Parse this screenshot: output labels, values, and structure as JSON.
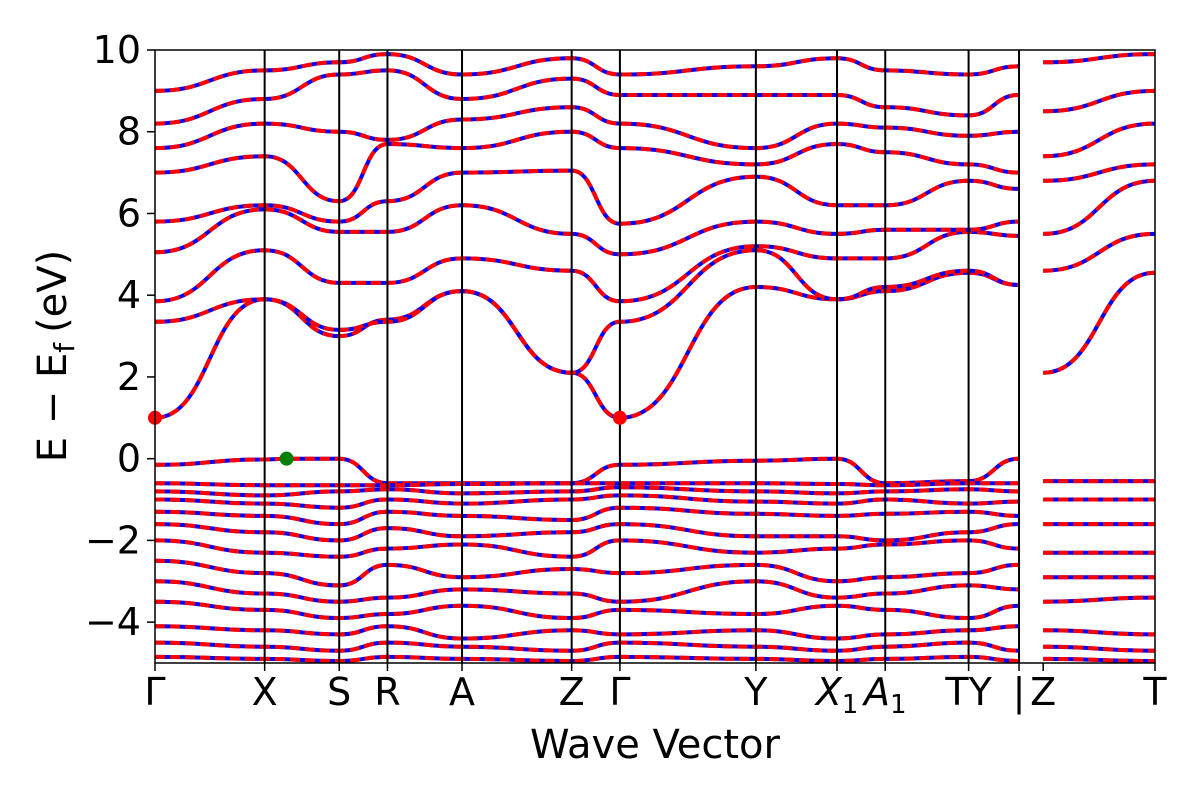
{
  "chart_data": {
    "type": "line",
    "xlabel": "Wave Vector",
    "ylabel_main": "E − E",
    "ylabel_sub": "f",
    "ylabel_unit": "(eV)",
    "ylim": [
      -5,
      10
    ],
    "yticks": [
      {
        "value": 10,
        "label": "10"
      },
      {
        "value": 8,
        "label": "8"
      },
      {
        "value": 6,
        "label": "6"
      },
      {
        "value": 4,
        "label": "4"
      },
      {
        "value": 2,
        "label": "2"
      },
      {
        "value": 0,
        "label": "0"
      },
      {
        "value": -2,
        "label": "−2"
      },
      {
        "value": -4,
        "label": "−4"
      }
    ],
    "kpath": [
      "Γ",
      "X",
      "S",
      "R",
      "A",
      "Z",
      "Γ",
      "Y",
      "X1",
      "A1",
      "T",
      "Y",
      "Z",
      "T"
    ],
    "xticks": [
      {
        "label": "Γ",
        "x": 0.0
      },
      {
        "label": "X",
        "x": 0.5
      },
      {
        "label": "S",
        "x": 0.84
      },
      {
        "label": "R",
        "x": 1.06
      },
      {
        "label": "A",
        "x": 1.4
      },
      {
        "label": "Z",
        "x": 1.9
      },
      {
        "label": "Γ",
        "x": 2.12
      },
      {
        "label": "Y",
        "x": 2.74
      },
      {
        "label": "X",
        "sub": "1",
        "x": 3.11
      },
      {
        "label": "A",
        "sub": "1",
        "x": 3.33
      },
      {
        "label": "TY",
        "x": 3.71
      },
      {
        "label": "|",
        "x": 3.94
      },
      {
        "label": "Z",
        "x": 4.05
      },
      {
        "label": "T",
        "x": 4.56
      }
    ],
    "xrange": [
      0.0,
      4.56
    ],
    "segment_boundaries": [
      0.5,
      0.84,
      1.06,
      1.4,
      1.9,
      2.12,
      2.74,
      3.11,
      3.33,
      3.71,
      3.94
    ],
    "series_colors": {
      "spin_up": "#0000ff",
      "spin_down": "#ff0000"
    },
    "cbm_points": [
      {
        "x": 0.0,
        "y": 1.0
      },
      {
        "x": 2.12,
        "y": 1.0
      }
    ],
    "cbm_color": "#ff0000",
    "vbm_points": [
      {
        "x": 0.6,
        "y": 0.0
      }
    ],
    "vbm_color": "#008000",
    "bands": [
      {
        "x": [
          0,
          0.5,
          0.84,
          1.06,
          1.4,
          1.9,
          2.12,
          2.74,
          3.11,
          3.33,
          3.71,
          3.94
        ],
        "y": [
          1.0,
          3.9,
          3.0,
          3.4,
          4.1,
          2.1,
          1.0,
          4.2,
          3.9,
          4.1,
          4.55,
          4.25
        ]
      },
      {
        "x": [
          4.05,
          4.56
        ],
        "y": [
          2.1,
          4.55
        ]
      },
      {
        "x": [
          0,
          0.5,
          0.84,
          1.06,
          1.4,
          1.9,
          2.12,
          2.74,
          3.11,
          3.33,
          3.71,
          3.94
        ],
        "y": [
          3.35,
          3.9,
          3.15,
          3.35,
          4.1,
          2.1,
          3.35,
          5.1,
          3.9,
          4.2,
          4.6,
          4.25
        ]
      },
      {
        "x": [
          0,
          0.5,
          0.84,
          1.06,
          1.4,
          1.9,
          2.12,
          2.74,
          3.11,
          3.33,
          3.71,
          3.94
        ],
        "y": [
          3.85,
          5.1,
          4.3,
          4.3,
          4.9,
          4.6,
          3.85,
          5.2,
          4.9,
          4.9,
          5.55,
          5.45
        ]
      },
      {
        "x": [
          4.05,
          4.56
        ],
        "y": [
          4.6,
          5.5
        ]
      },
      {
        "x": [
          0,
          0.5,
          0.84,
          1.06,
          1.4,
          1.9,
          2.12,
          2.74,
          3.11,
          3.33,
          3.71,
          3.94
        ],
        "y": [
          5.05,
          6.1,
          5.55,
          5.55,
          6.2,
          5.5,
          5.0,
          5.8,
          5.5,
          5.6,
          5.6,
          5.8
        ]
      },
      {
        "x": [
          4.05,
          4.56
        ],
        "y": [
          5.5,
          6.8
        ]
      },
      {
        "x": [
          0,
          0.5,
          0.84,
          1.06,
          1.4,
          1.9,
          2.12,
          2.74,
          3.11,
          3.33,
          3.71,
          3.94
        ],
        "y": [
          5.8,
          6.2,
          5.8,
          6.3,
          7.0,
          7.05,
          5.75,
          6.9,
          6.2,
          6.2,
          6.8,
          6.6
        ]
      },
      {
        "x": [
          0,
          0.5,
          0.84,
          1.06,
          1.4,
          1.9,
          2.12,
          2.74,
          3.11,
          3.33,
          3.71,
          3.94
        ],
        "y": [
          7.0,
          7.4,
          6.3,
          7.7,
          7.6,
          8.0,
          7.6,
          7.2,
          7.7,
          7.5,
          7.2,
          7.0
        ]
      },
      {
        "x": [
          4.05,
          4.56
        ],
        "y": [
          6.8,
          7.2
        ]
      },
      {
        "x": [
          0,
          0.5,
          0.84,
          1.06,
          1.4,
          1.9,
          2.12,
          2.74,
          3.11,
          3.33,
          3.71,
          3.94
        ],
        "y": [
          7.6,
          8.2,
          8.0,
          7.8,
          8.3,
          8.6,
          8.2,
          7.6,
          8.2,
          8.1,
          7.9,
          8.0
        ]
      },
      {
        "x": [
          4.05,
          4.56
        ],
        "y": [
          7.4,
          8.2
        ]
      },
      {
        "x": [
          0,
          0.5,
          0.84,
          1.06,
          1.4,
          1.9,
          2.12,
          2.74,
          3.11,
          3.33,
          3.71,
          3.94
        ],
        "y": [
          8.2,
          8.8,
          9.4,
          9.5,
          8.8,
          9.3,
          8.9,
          8.9,
          8.9,
          8.6,
          8.4,
          8.9
        ]
      },
      {
        "x": [
          4.05,
          4.56
        ],
        "y": [
          8.5,
          9.0
        ]
      },
      {
        "x": [
          0,
          0.5,
          0.84,
          1.06,
          1.4,
          1.9,
          2.12,
          2.74,
          3.11,
          3.33,
          3.71,
          3.94
        ],
        "y": [
          9.0,
          9.5,
          9.7,
          9.9,
          9.4,
          9.8,
          9.4,
          9.6,
          9.8,
          9.5,
          9.4,
          9.6
        ]
      },
      {
        "x": [
          4.05,
          4.56
        ],
        "y": [
          9.7,
          9.9
        ]
      },
      {
        "x": [
          0,
          0.5,
          0.6,
          0.84,
          1.06,
          1.4,
          1.9,
          2.12,
          2.74,
          3.11,
          3.33,
          3.71,
          3.94
        ],
        "y": [
          -0.15,
          -0.02,
          0.0,
          0.0,
          -0.6,
          -0.6,
          -0.6,
          -0.15,
          -0.05,
          0.0,
          -0.6,
          -0.55,
          0.0
        ]
      },
      {
        "x": [
          0,
          0.5,
          0.84,
          1.06,
          1.4,
          1.9,
          2.12,
          2.74,
          3.11,
          3.33,
          3.71,
          3.94
        ],
        "y": [
          -0.6,
          -0.65,
          -0.65,
          -0.65,
          -0.62,
          -0.6,
          -0.6,
          -0.6,
          -0.62,
          -0.65,
          -0.6,
          -0.6
        ]
      },
      {
        "x": [
          4.05,
          4.56
        ],
        "y": [
          -0.55,
          -0.55
        ]
      },
      {
        "x": [
          0,
          0.5,
          0.84,
          1.06,
          1.4,
          1.9,
          2.12,
          2.74,
          3.11,
          3.33,
          3.71,
          3.94
        ],
        "y": [
          -0.8,
          -0.9,
          -0.8,
          -0.75,
          -0.85,
          -0.8,
          -0.7,
          -0.8,
          -0.85,
          -0.8,
          -0.75,
          -0.8
        ]
      },
      {
        "x": [
          0,
          0.5,
          0.84,
          1.06,
          1.4,
          1.9,
          2.12,
          2.74,
          3.11,
          3.33,
          3.71,
          3.94
        ],
        "y": [
          -1.0,
          -1.1,
          -1.2,
          -1.0,
          -1.1,
          -1.0,
          -0.9,
          -1.05,
          -1.1,
          -1.0,
          -1.1,
          -1.05
        ]
      },
      {
        "x": [
          4.05,
          4.56
        ],
        "y": [
          -1.0,
          -1.0
        ]
      },
      {
        "x": [
          0,
          0.5,
          0.84,
          1.06,
          1.4,
          1.9,
          2.12,
          2.74,
          3.11,
          3.33,
          3.71,
          3.94
        ],
        "y": [
          -1.3,
          -1.4,
          -1.6,
          -1.3,
          -1.4,
          -1.5,
          -1.2,
          -1.35,
          -1.4,
          -1.35,
          -1.3,
          -1.4
        ]
      },
      {
        "x": [
          0,
          0.5,
          0.84,
          1.06,
          1.4,
          1.9,
          2.12,
          2.74,
          3.11,
          3.33,
          3.71,
          3.94
        ],
        "y": [
          -1.6,
          -1.8,
          -2.0,
          -1.7,
          -1.9,
          -1.8,
          -1.6,
          -1.9,
          -1.9,
          -2.0,
          -1.8,
          -1.6
        ]
      },
      {
        "x": [
          4.05,
          4.56
        ],
        "y": [
          -1.6,
          -1.6
        ]
      },
      {
        "x": [
          0,
          0.5,
          0.84,
          1.06,
          1.4,
          1.9,
          2.12,
          2.74,
          3.11,
          3.33,
          3.71,
          3.94
        ],
        "y": [
          -2.0,
          -2.3,
          -2.4,
          -2.2,
          -2.1,
          -2.4,
          -2.0,
          -2.3,
          -2.2,
          -2.1,
          -2.0,
          -2.2
        ]
      },
      {
        "x": [
          0,
          0.5,
          0.84,
          1.06,
          1.4,
          1.9,
          2.12,
          2.74,
          3.11,
          3.33,
          3.71,
          3.94
        ],
        "y": [
          -2.5,
          -2.8,
          -3.1,
          -2.6,
          -2.9,
          -2.7,
          -2.8,
          -2.6,
          -3.0,
          -2.9,
          -2.8,
          -2.6
        ]
      },
      {
        "x": [
          4.05,
          4.56
        ],
        "y": [
          -2.3,
          -2.3
        ]
      },
      {
        "x": [
          0,
          0.5,
          0.84,
          1.06,
          1.4,
          1.9,
          2.12,
          2.74,
          3.11,
          3.33,
          3.71,
          3.94
        ],
        "y": [
          -3.0,
          -3.3,
          -3.5,
          -3.4,
          -3.2,
          -3.3,
          -3.5,
          -3.0,
          -3.4,
          -3.3,
          -3.1,
          -3.2
        ]
      },
      {
        "x": [
          4.05,
          4.56
        ],
        "y": [
          -2.9,
          -2.9
        ]
      },
      {
        "x": [
          0,
          0.5,
          0.84,
          1.06,
          1.4,
          1.9,
          2.12,
          2.74,
          3.11,
          3.33,
          3.71,
          3.94
        ],
        "y": [
          -3.5,
          -3.7,
          -3.9,
          -3.8,
          -3.6,
          -3.9,
          -3.7,
          -3.8,
          -3.6,
          -3.7,
          -3.9,
          -3.6
        ]
      },
      {
        "x": [
          4.05,
          4.56
        ],
        "y": [
          -3.5,
          -3.4
        ]
      },
      {
        "x": [
          0,
          0.5,
          0.84,
          1.06,
          1.4,
          1.9,
          2.12,
          2.74,
          3.11,
          3.33,
          3.71,
          3.94
        ],
        "y": [
          -4.1,
          -4.2,
          -4.3,
          -4.1,
          -4.4,
          -4.2,
          -4.3,
          -4.2,
          -4.4,
          -4.3,
          -4.2,
          -4.1
        ]
      },
      {
        "x": [
          4.05,
          4.56
        ],
        "y": [
          -4.2,
          -4.3
        ]
      },
      {
        "x": [
          0,
          0.5,
          0.84,
          1.06,
          1.4,
          1.9,
          2.12,
          2.74,
          3.11,
          3.33,
          3.71,
          3.94
        ],
        "y": [
          -4.5,
          -4.6,
          -4.7,
          -4.5,
          -4.6,
          -4.7,
          -4.5,
          -4.6,
          -4.7,
          -4.6,
          -4.5,
          -4.7
        ]
      },
      {
        "x": [
          4.05,
          4.56
        ],
        "y": [
          -4.6,
          -4.7
        ]
      },
      {
        "x": [
          0,
          0.5,
          0.84,
          1.06,
          1.4,
          1.9,
          2.12,
          2.74,
          3.11,
          3.33,
          3.71,
          3.94
        ],
        "y": [
          -4.85,
          -4.9,
          -4.95,
          -4.85,
          -4.9,
          -4.95,
          -4.85,
          -4.9,
          -4.95,
          -4.9,
          -4.85,
          -4.95
        ]
      },
      {
        "x": [
          4.05,
          4.56
        ],
        "y": [
          -4.9,
          -4.95
        ]
      }
    ]
  }
}
